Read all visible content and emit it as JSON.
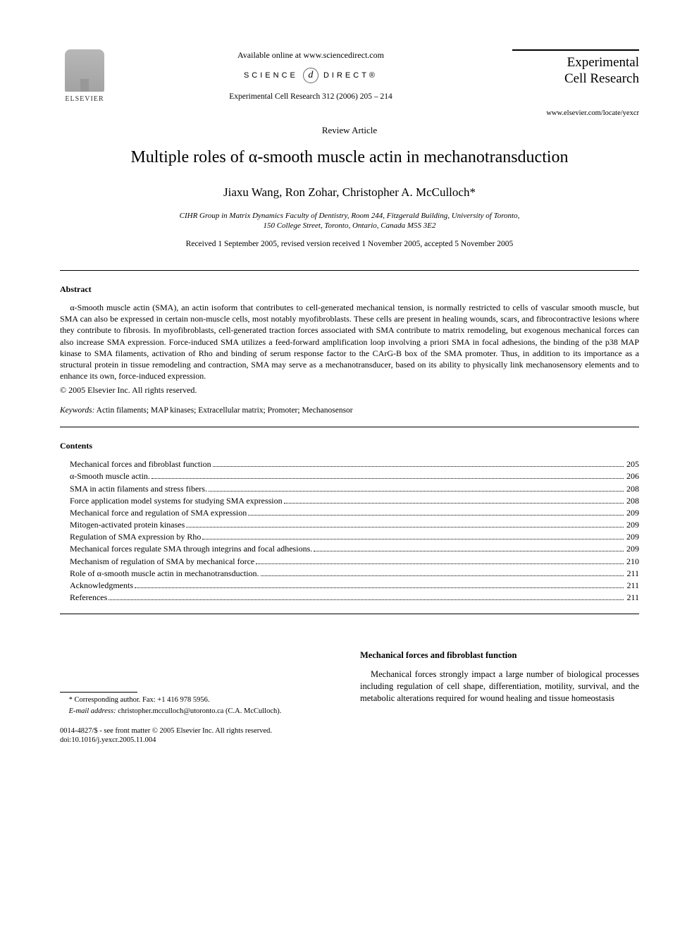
{
  "header": {
    "publisher_name": "ELSEVIER",
    "available_line": "Available online at www.sciencedirect.com",
    "sd_left": "SCIENCE",
    "sd_glyph": "d",
    "sd_right": "DIRECT®",
    "journal_ref": "Experimental Cell Research 312 (2006) 205 – 214",
    "journal_title_line1": "Experimental",
    "journal_title_line2": "Cell Research",
    "journal_url": "www.elsevier.com/locate/yexcr"
  },
  "article": {
    "type": "Review Article",
    "title": "Multiple roles of α-smooth muscle actin in mechanotransduction",
    "authors": "Jiaxu Wang, Ron Zohar, Christopher A. McCulloch*",
    "affiliation_line1": "CIHR Group in Matrix Dynamics Faculty of Dentistry, Room 244, Fitzgerald Building, University of Toronto,",
    "affiliation_line2": "150 College Street, Toronto, Ontario, Canada M5S 3E2",
    "dates": "Received 1 September 2005, revised version received 1 November 2005, accepted 5 November 2005"
  },
  "abstract": {
    "heading": "Abstract",
    "text": "α-Smooth muscle actin (SMA), an actin isoform that contributes to cell-generated mechanical tension, is normally restricted to cells of vascular smooth muscle, but SMA can also be expressed in certain non-muscle cells, most notably myofibroblasts. These cells are present in healing wounds, scars, and fibrocontractive lesions where they contribute to fibrosis. In myofibroblasts, cell-generated traction forces associated with SMA contribute to matrix remodeling, but exogenous mechanical forces can also increase SMA expression. Force-induced SMA utilizes a feed-forward amplification loop involving a priori SMA in focal adhesions, the binding of the p38 MAP kinase to SMA filaments, activation of Rho and binding of serum response factor to the CArG-B box of the SMA promoter. Thus, in addition to its importance as a structural protein in tissue remodeling and contraction, SMA may serve as a mechanotransducer, based on its ability to physically link mechanosensory elements and to enhance its own, force-induced expression.",
    "copyright": "© 2005 Elsevier Inc. All rights reserved.",
    "keywords_label": "Keywords:",
    "keywords_text": " Actin filaments; MAP kinases; Extracellular matrix; Promoter; Mechanosensor"
  },
  "contents": {
    "heading": "Contents",
    "items": [
      {
        "label": "Mechanical forces and fibroblast function",
        "page": "205"
      },
      {
        "label": "α-Smooth muscle actin.",
        "page": "206"
      },
      {
        "label": "SMA in actin filaments and stress fibers.",
        "page": "208"
      },
      {
        "label": "Force application model systems for studying SMA expression",
        "page": "208"
      },
      {
        "label": "Mechanical force and regulation of SMA expression",
        "page": "209"
      },
      {
        "label": "Mitogen-activated protein kinases",
        "page": "209"
      },
      {
        "label": "Regulation of SMA expression by Rho",
        "page": "209"
      },
      {
        "label": "Mechanical forces regulate SMA through integrins and focal adhesions.",
        "page": "209"
      },
      {
        "label": "Mechanism of regulation of SMA by mechanical force",
        "page": "210"
      },
      {
        "label": "Role of α-smooth muscle actin in mechanotransduction.",
        "page": "211"
      },
      {
        "label": "Acknowledgments",
        "page": "211"
      },
      {
        "label": "References",
        "page": "211"
      }
    ]
  },
  "body": {
    "section_heading": "Mechanical forces and fibroblast function",
    "para": "Mechanical forces strongly impact a large number of biological processes including regulation of cell shape, differentiation, motility, survival, and the metabolic alterations required for wound healing and tissue homeostasis"
  },
  "footnotes": {
    "corresponding": "* Corresponding author. Fax: +1 416 978 5956.",
    "email_label": "E-mail address:",
    "email_value": " christopher.mcculloch@utoronto.ca (C.A. McCulloch)."
  },
  "footer": {
    "line1": "0014-4827/$ - see front matter © 2005 Elsevier Inc. All rights reserved.",
    "line2": "doi:10.1016/j.yexcr.2005.11.004"
  }
}
